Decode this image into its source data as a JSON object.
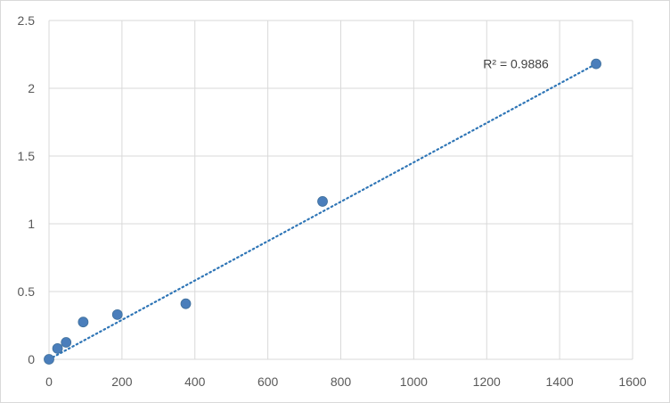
{
  "chart_data": {
    "type": "scatter",
    "title": "",
    "xlabel": "",
    "ylabel": "",
    "xlim": [
      0,
      1600
    ],
    "ylim": [
      0,
      2.5
    ],
    "x_ticks": [
      0,
      200,
      400,
      600,
      800,
      1000,
      1200,
      1400,
      1600
    ],
    "y_ticks": [
      0,
      0.5,
      1,
      1.5,
      2,
      2.5
    ],
    "x_tick_labels": [
      "0",
      "200",
      "400",
      "600",
      "800",
      "1000",
      "1200",
      "1400",
      "1600"
    ],
    "y_tick_labels": [
      "0",
      "0.5",
      "1",
      "1.5",
      "2",
      "2.5"
    ],
    "grid": true,
    "legend": "none",
    "series": [
      {
        "points": [
          {
            "x": 0,
            "y": 0.0
          },
          {
            "x": 23.4,
            "y": 0.08
          },
          {
            "x": 46.9,
            "y": 0.125
          },
          {
            "x": 93.75,
            "y": 0.275
          },
          {
            "x": 187.5,
            "y": 0.33
          },
          {
            "x": 375,
            "y": 0.41
          },
          {
            "x": 750,
            "y": 1.165
          },
          {
            "x": 1500,
            "y": 2.18
          }
        ],
        "color": "#4a7ebb"
      }
    ],
    "trendline": {
      "type": "linear",
      "style": "dotted",
      "color": "#2e75b6",
      "x_start": 0,
      "x_end": 1500,
      "y_start": 0.0,
      "y_end": 2.18
    },
    "annotations": [
      {
        "text": "R² = 0.9886",
        "x": 1370,
        "y": 2.18
      }
    ]
  }
}
